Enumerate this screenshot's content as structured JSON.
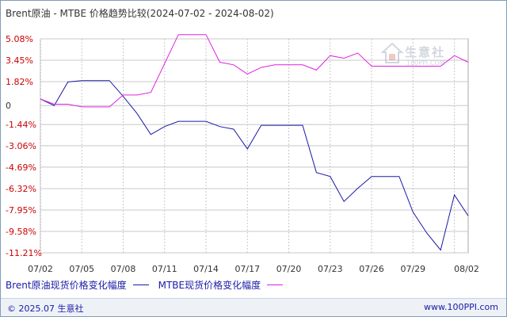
{
  "title": "Brent原油 - MTBE 价格趋势比较(2024-07-02 - 2024-08-02)",
  "legend": [
    {
      "label": "Brent原油现货价格变化幅度",
      "color": "#1a1aa8"
    },
    {
      "label": "MTBE现货价格变化幅度",
      "color": "#e020e0"
    }
  ],
  "footer": {
    "copyright": "© 2025.07 生意社",
    "website": "www.100PPI.com"
  },
  "watermark": {
    "name": "生意社",
    "url": "100PPI.COM"
  },
  "colors": {
    "brent": "#1a1aa8",
    "mtbe": "#e020e0",
    "grid": "#c8c8c8",
    "axis_label": "#cc0000"
  },
  "chart_data": {
    "type": "line",
    "title": "Brent原油 - MTBE 价格趋势比较(2024-07-02 - 2024-08-02)",
    "x": [
      "07/02",
      "07/03",
      "07/04",
      "07/05",
      "07/06",
      "07/07",
      "07/08",
      "07/09",
      "07/10",
      "07/11",
      "07/12",
      "07/13",
      "07/14",
      "07/15",
      "07/16",
      "07/17",
      "07/18",
      "07/19",
      "07/20",
      "07/21",
      "07/22",
      "07/23",
      "07/24",
      "07/25",
      "07/26",
      "07/27",
      "07/28",
      "07/29",
      "07/30",
      "07/31",
      "08/01",
      "08/02"
    ],
    "x_tick_labels": [
      "07/02",
      "07/05",
      "07/08",
      "07/11",
      "07/14",
      "07/17",
      "07/20",
      "07/23",
      "07/26",
      "07/29",
      "08/02"
    ],
    "x_tick_positions": [
      "07/02",
      "07/05",
      "07/08",
      "07/11",
      "07/14",
      "07/17",
      "07/20",
      "07/23",
      "07/26",
      "07/29",
      "08/01"
    ],
    "y_ticks": [
      "5.08%",
      "3.45%",
      "1.82%",
      "0",
      "-1.44%",
      "-3.06%",
      "-4.69%",
      "-6.32%",
      "-7.95%",
      "-9.58%",
      "-11.21%"
    ],
    "y_tick_values": [
      5.08,
      3.45,
      1.82,
      0,
      -1.44,
      -3.06,
      -4.69,
      -6.32,
      -7.95,
      -9.58,
      -11.21
    ],
    "ylim": [
      -11.21,
      5.08
    ],
    "grid": true,
    "legend_position": "bottom",
    "series": [
      {
        "name": "Brent原油现货价格变化幅度",
        "values": [
          0.5,
          0.0,
          1.8,
          1.9,
          1.9,
          1.9,
          0.7,
          -0.6,
          -2.2,
          -1.6,
          -1.2,
          -1.2,
          -1.2,
          -1.6,
          -1.8,
          -3.3,
          -1.5,
          -1.5,
          -1.5,
          -1.5,
          -5.1,
          -5.4,
          -7.3,
          -6.3,
          -5.4,
          -5.4,
          -5.4,
          -8.1,
          -9.7,
          -11.0,
          -6.8,
          -8.4
        ]
      },
      {
        "name": "MTBE现货价格变化幅度",
        "values": [
          0.5,
          0.1,
          0.1,
          -0.1,
          -0.1,
          -0.1,
          0.8,
          0.8,
          1.0,
          3.2,
          5.4,
          5.4,
          5.4,
          3.3,
          3.1,
          2.4,
          2.9,
          3.1,
          3.1,
          3.1,
          2.7,
          3.8,
          3.6,
          4.0,
          3.0,
          3.0,
          3.0,
          3.0,
          3.0,
          3.0,
          3.8,
          3.3
        ]
      }
    ]
  }
}
